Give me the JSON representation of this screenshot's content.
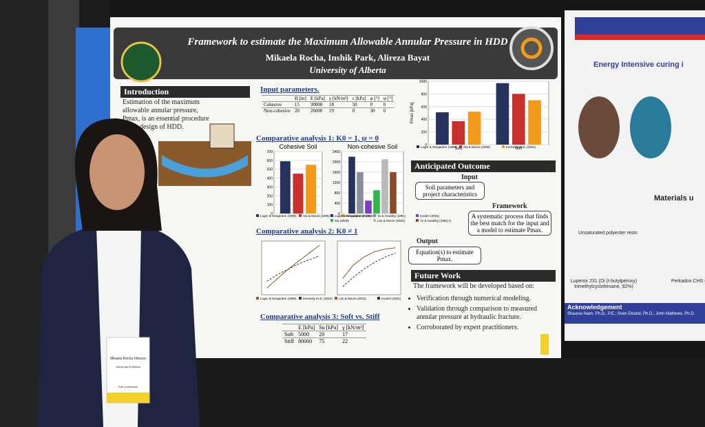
{
  "poster": {
    "title": "Framework to estimate the Maximum Allowable Annular Pressure in HDD",
    "authors": "Mikaela Rocha, Inshik Park, Alireza Bayat",
    "affiliation": "University of Alberta",
    "introduction": {
      "heading": "Introduction",
      "text": "Estimation of the maximum allowable annular pressure, Pmax, is an essential procedure in the design of HDD."
    },
    "input_parameters": {
      "heading": "Input parameters.",
      "header": [
        "H [m]",
        "E [kPa]",
        "γ [kN/m³]",
        "c [kPa]",
        "φ [°]",
        "ψ [°]"
      ],
      "rows": [
        [
          "Cohesive",
          "15",
          "30000",
          "18",
          "50",
          "0",
          "0"
        ],
        [
          "Non-cohesive",
          "20",
          "26000",
          "19",
          "0",
          "30",
          "0"
        ]
      ]
    },
    "analysis1": "Comparative analysis 1: K0 = 1, ψ = 0",
    "analysis2": "Comparative analysis 2: K0 ≠ 1",
    "analysis3": {
      "heading": "Comparative analysis 3: Soft vs. Stiff",
      "header": [
        "E [kPa]",
        "Su [kPa]",
        "γ [kN/m³]"
      ],
      "rows": [
        [
          "Soft",
          "5000",
          "20",
          "17"
        ],
        [
          "Stiff",
          "80000",
          "75",
          "22"
        ]
      ]
    },
    "outcome": {
      "heading": "Anticipated Outcome",
      "input_label": "Input",
      "input_text": "Soil parameters and project characteristics",
      "framework_label": "Framework",
      "framework_text": "A systematic process that finds the best match for the input and a model to estimate Pmax.",
      "output_label": "Output",
      "output_text": "Equation(s) to estimate Pmax."
    },
    "future_work": {
      "heading": "Future Work",
      "intro": "The framework will be developed based on:",
      "bullets": [
        "Verification through numerical modeling.",
        "Validation through comparison to measured annular pressure at hydraulic fracture.",
        "Corroborated by expert practitioners."
      ]
    },
    "charts": [
      {
        "type": "bar",
        "y_label": "Pmax [kPa]",
        "categories": [
          "Soft",
          "Stiff"
        ],
        "ylim": [
          0,
          1000
        ],
        "yticks": [
          0,
          200,
          400,
          600,
          800,
          1000
        ],
        "series": [
          {
            "name": "Luger & Hergarden (1988)",
            "color": "#27315e",
            "values": [
              510,
              970
            ]
          },
          {
            "name": "Xia & Moore (2006)",
            "color": "#c8302c",
            "values": [
              370,
              800
            ]
          },
          {
            "name": "Kennedy et al. (2004)",
            "color": "#f29a1c",
            "values": [
              520,
              700
            ]
          }
        ]
      },
      {
        "type": "bar",
        "title": "Cohesive Soil",
        "categories": [
          null
        ],
        "ylim": [
          0,
          700
        ],
        "yticks": [
          0,
          100,
          200,
          300,
          400,
          500,
          600,
          700
        ],
        "series": [
          {
            "name": "Luger & Hergarden (1988)",
            "color": "#27315e",
            "values": [
              590
            ]
          },
          {
            "name": "Xia & Moore (2006)",
            "color": "#c8302c",
            "values": [
              450
            ]
          },
          {
            "name": "Kennedy et al. (2004)",
            "color": "#f29a1c",
            "values": [
              550
            ]
          }
        ]
      },
      {
        "type": "bar",
        "title": "Non-cohesive Soil",
        "categories": [
          null
        ],
        "ylim": [
          0,
          2400
        ],
        "yticks": [
          0,
          400,
          800,
          1200,
          1600,
          2000,
          2400
        ],
        "series": [
          {
            "name": "Luger & Hergarden (1988)",
            "color": "#27315e",
            "values": [
              2200
            ]
          },
          {
            "name": "Yu & Houlsby (1991)",
            "color": "#8a8f99",
            "values": [
              1600
            ]
          },
          {
            "name": "Kouleri (2001)",
            "color": "#7a3fc0",
            "values": [
              500
            ]
          },
          {
            "name": "Xia (2009)",
            "color": "#2fb84a",
            "values": [
              900
            ]
          },
          {
            "name": "Lan & Moore (2022)",
            "color": "#b9b9b9",
            "values": [
              2100
            ]
          },
          {
            "name": "Yu & Houlsby (1991) b",
            "color": "#8a4a2a",
            "values": [
              1600
            ]
          }
        ]
      },
      {
        "type": "line",
        "categories": [
          null,
          null,
          null,
          null,
          null,
          null
        ],
        "ylim": [
          0,
          4
        ],
        "series": [
          {
            "name": "Luger & Hergarden (1988)",
            "color": "#8a5a2a",
            "values": [
              0.5,
              1.2,
              1.9,
              2.5,
              3.1,
              3.7
            ]
          },
          {
            "name": "Kennedy et al. (2004)",
            "color": "#333333",
            "values": [
              1.0,
              1.5,
              1.9,
              2.3,
              2.6,
              2.9
            ]
          }
        ]
      },
      {
        "type": "line",
        "categories": [
          null,
          null,
          null,
          null,
          null,
          null
        ],
        "ylim": [
          0,
          4
        ],
        "series": [
          {
            "name": "Lan & Moore (2022)",
            "color": "#8a5a2a",
            "values": [
              1.2,
              2.2,
              2.8,
              3.2,
              3.4,
              3.5
            ]
          },
          {
            "name": "Kouleri (2001)",
            "color": "#333333",
            "values": [
              0.6,
              1.3,
              1.9,
              2.4,
              2.8,
              3.1
            ]
          }
        ]
      }
    ]
  },
  "right_poster": {
    "heading": "Energy Intensive curing i",
    "materials": "Materials u",
    "resin": "Unsaturated polyester resin",
    "luperox": "Luperox 231 (Di (t-butylperoxy) trimethylcyclohexane, 92%)",
    "perkadox": "Perkadox CHS (dibenzoylper",
    "ack_heading": "Acknowledgement",
    "ack_text": "Shaurav Alam, Ph.D., P.E.; Sven Eklund, Ph.D.; John Mathews, Ph.D."
  },
  "badge": {
    "name": "Mikaela Rocha Velasco",
    "org": "University of Alberta",
    "type": "Full Conference"
  }
}
